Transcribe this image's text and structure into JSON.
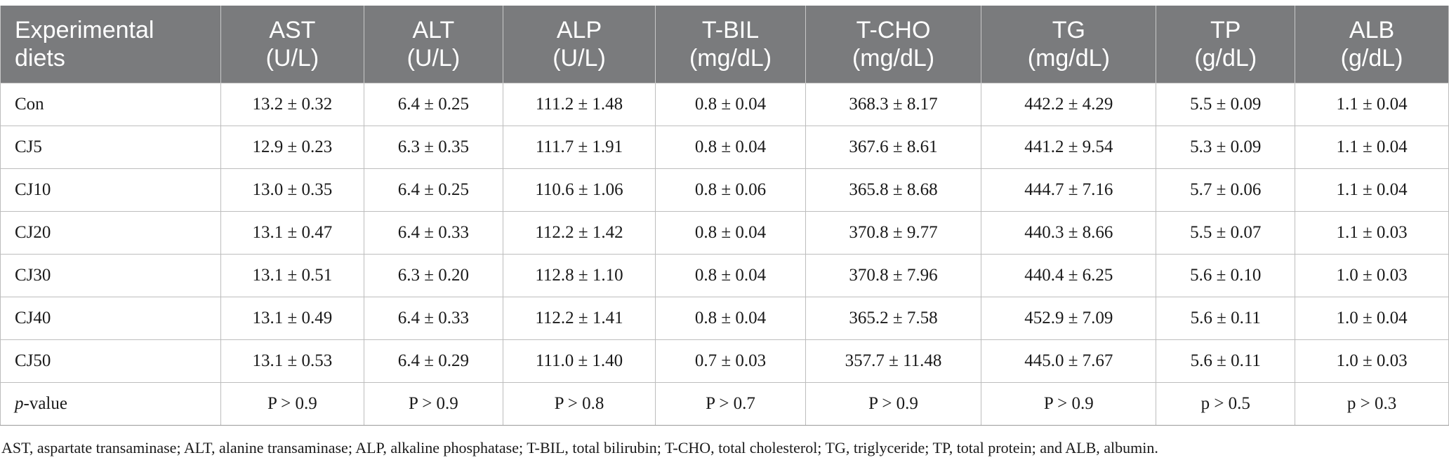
{
  "header": {
    "first": [
      "Experimental",
      "diets"
    ],
    "cols": [
      [
        "AST",
        "(U/L)"
      ],
      [
        "ALT",
        "(U/L)"
      ],
      [
        "ALP",
        "(U/L)"
      ],
      [
        "T-BIL",
        "(mg/dL)"
      ],
      [
        "T-CHO",
        "(mg/dL)"
      ],
      [
        "TG",
        "(mg/dL)"
      ],
      [
        "TP",
        "(g/dL)"
      ],
      [
        "ALB",
        "(g/dL)"
      ]
    ]
  },
  "rows": [
    {
      "label": "Con",
      "cells": [
        "13.2 ± 0.32",
        "6.4 ± 0.25",
        "111.2 ± 1.48",
        "0.8 ± 0.04",
        "368.3 ± 8.17",
        "442.2 ± 4.29",
        "5.5 ± 0.09",
        "1.1 ± 0.04"
      ]
    },
    {
      "label": "CJ5",
      "cells": [
        "12.9 ± 0.23",
        "6.3 ± 0.35",
        "111.7 ± 1.91",
        "0.8 ± 0.04",
        "367.6 ± 8.61",
        "441.2 ± 9.54",
        "5.3 ± 0.09",
        "1.1 ± 0.04"
      ]
    },
    {
      "label": "CJ10",
      "cells": [
        "13.0 ± 0.35",
        "6.4 ± 0.25",
        "110.6 ± 1.06",
        "0.8 ± 0.06",
        "365.8 ± 8.68",
        "444.7 ± 7.16",
        "5.7 ± 0.06",
        "1.1 ± 0.04"
      ]
    },
    {
      "label": "CJ20",
      "cells": [
        "13.1 ± 0.47",
        "6.4 ± 0.33",
        "112.2 ± 1.42",
        "0.8 ± 0.04",
        "370.8 ± 9.77",
        "440.3 ± 8.66",
        "5.5 ± 0.07",
        "1.1 ± 0.03"
      ]
    },
    {
      "label": "CJ30",
      "cells": [
        "13.1 ± 0.51",
        "6.3 ± 0.20",
        "112.8 ± 1.10",
        "0.8 ± 0.04",
        "370.8 ± 7.96",
        "440.4 ± 6.25",
        "5.6 ± 0.10",
        "1.0 ± 0.03"
      ]
    },
    {
      "label": "CJ40",
      "cells": [
        "13.1 ± 0.49",
        "6.4 ± 0.33",
        "112.2 ± 1.41",
        "0.8 ± 0.04",
        "365.2 ± 7.58",
        "452.9 ± 7.09",
        "5.6 ± 0.11",
        "1.0 ± 0.04"
      ]
    },
    {
      "label": "CJ50",
      "cells": [
        "13.1 ± 0.53",
        "6.4 ± 0.29",
        "111.0 ± 1.40",
        "0.7 ± 0.03",
        "357.7 ± 11.48",
        "445.0 ± 7.67",
        "5.6 ± 0.11",
        "1.0 ± 0.03"
      ]
    }
  ],
  "pvalue": {
    "label_italic": "p",
    "label_rest": "-value",
    "cells": [
      "P > 0.9",
      "P > 0.9",
      "P > 0.8",
      "P > 0.7",
      "P > 0.9",
      "P > 0.9",
      "p > 0.5",
      "p > 0.3"
    ]
  },
  "footnote": "AST, aspartate transaminase; ALT, alanine transaminase; ALP, alkaline phosphatase; T-BIL, total bilirubin; T-CHO, total cholesterol; TG, triglyceride; TP, total protein; and ALB, albumin."
}
